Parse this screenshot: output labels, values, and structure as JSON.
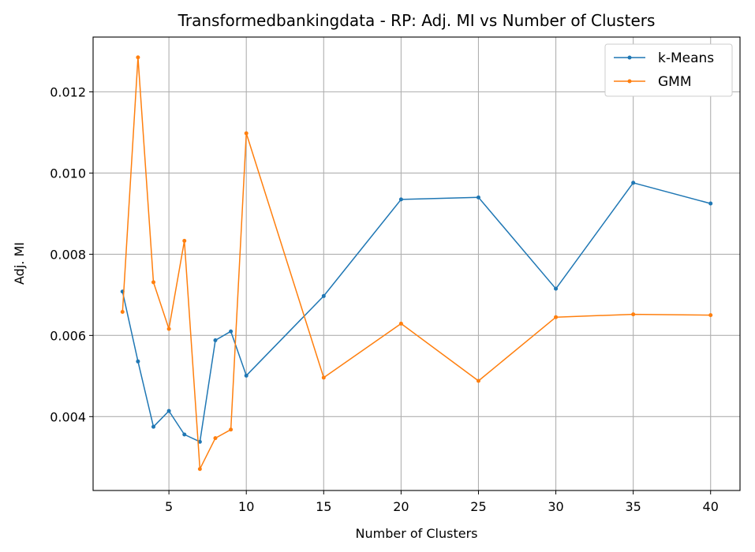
{
  "chart_data": {
    "type": "line",
    "title": "Transformedbankingdata - RP: Adj. MI vs Number of Clusters",
    "xlabel": "Number of Clusters",
    "ylabel": "Adj. MI",
    "xlim": [
      0.1,
      41.9
    ],
    "ylim": [
      0.00218,
      0.01335
    ],
    "xticks": [
      5,
      10,
      15,
      20,
      25,
      30,
      35,
      40
    ],
    "yticks": [
      0.004,
      0.006,
      0.008,
      0.01,
      0.012
    ],
    "ytick_labels": [
      "0.004",
      "0.006",
      "0.008",
      "0.010",
      "0.012"
    ],
    "grid": true,
    "legend_position": "top-right",
    "series": [
      {
        "name": "k-Means",
        "color": "#1f77b4",
        "x": [
          2,
          3,
          4,
          5,
          6,
          7,
          8,
          9,
          10,
          15,
          20,
          25,
          30,
          35,
          40
        ],
        "values": [
          0.00708,
          0.00536,
          0.00375,
          0.00414,
          0.00356,
          0.00338,
          0.00588,
          0.0061,
          0.00501,
          0.00697,
          0.00935,
          0.0094,
          0.00715,
          0.00976,
          0.00925
        ]
      },
      {
        "name": "GMM",
        "color": "#ff7f0e",
        "x": [
          2,
          3,
          4,
          5,
          6,
          7,
          8,
          9,
          10,
          15,
          20,
          25,
          30,
          35,
          40
        ],
        "values": [
          0.00658,
          0.01285,
          0.00731,
          0.00616,
          0.00833,
          0.00271,
          0.00347,
          0.00368,
          0.01098,
          0.00496,
          0.00629,
          0.00488,
          0.00645,
          0.00652,
          0.0065
        ]
      }
    ]
  }
}
